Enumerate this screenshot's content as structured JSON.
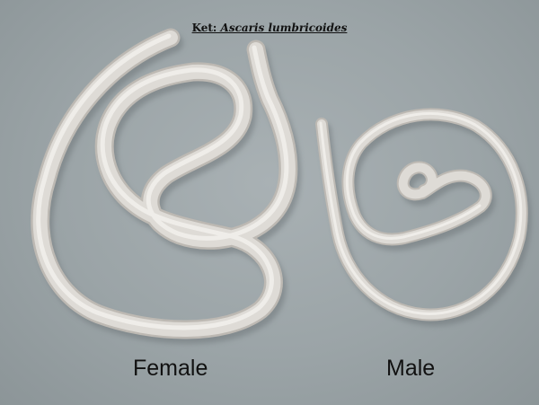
{
  "caption": {
    "prefix": "Ket: ",
    "species": "Ascaris lumbricoides"
  },
  "labels": {
    "female": "Female",
    "male": "Male"
  },
  "colors": {
    "background": "#9ba4a7",
    "worm_body": "#dedbd6",
    "worm_shadow": "#6f777a",
    "worm_highlight": "#f3f1ed"
  }
}
